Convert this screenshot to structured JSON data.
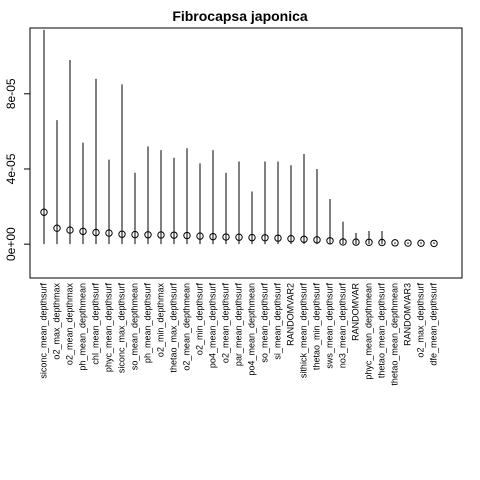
{
  "chart_data": {
    "type": "scatter",
    "subtype": "dot-with-range-lines",
    "title": "Fibrocapsa japonica",
    "xlabel": "",
    "ylabel": "",
    "ylim": [
      -1.8e-05,
      0.000115
    ],
    "y_ticks": [
      0,
      4e-05,
      8e-05
    ],
    "y_tick_labels": [
      "0e+00",
      "4e-05",
      "8e-05"
    ],
    "categories": [
      "siconc_mean_depthsurf",
      "o2_max_depthmax",
      "o2_mean_depthmax",
      "ph_mean_depthmean",
      "chl_mean_depthsurf",
      "phyc_mean_depthsurf",
      "siconc_max_depthsurf",
      "so_mean_depthmean",
      "ph_mean_depthsurf",
      "o2_min_depthmax",
      "thetao_max_depthsurf",
      "o2_mean_depthmean",
      "o2_min_depthsurf",
      "po4_mean_depthsurf",
      "o2_mean_depthsurf",
      "par_mean_depthsurf",
      "po4_mean_depthmean",
      "so_mean_depthsurf",
      "si_mean_depthsurf",
      "RANDOMVAR2",
      "sithick_mean_depthsurf",
      "thetao_min_depthsurf",
      "sws_mean_depthsurf",
      "no3_mean_depthsurf",
      "RANDOMVAR",
      "phyc_mean_depthmean",
      "thetao_mean_depthsurf",
      "thetao_mean_depthmean",
      "RANDOMVAR3",
      "o2_max_depthsurf",
      "dfe_mean_depthsurf"
    ],
    "values": [
      1.7e-05,
      8.5e-06,
      7.5e-06,
      6.8e-06,
      6.2e-06,
      5.9e-06,
      5.3e-06,
      5.1e-06,
      5e-06,
      4.9e-06,
      4.8e-06,
      4.6e-06,
      4.3e-06,
      4e-06,
      3.8e-06,
      3.7e-06,
      3.5e-06,
      3.4e-06,
      3.2e-06,
      2.9e-06,
      2.6e-06,
      2.3e-06,
      1.8e-06,
      1.2e-06,
      1.1e-06,
      1e-06,
      9e-07,
      7e-07,
      6e-07,
      5e-07,
      4e-07
    ],
    "range_max": [
      0.000114,
      6.6e-05,
      9.8e-05,
      5.4e-05,
      8.8e-05,
      4.5e-05,
      8.5e-05,
      3.8e-05,
      5.2e-05,
      5e-05,
      4.6e-05,
      5.1e-05,
      4.3e-05,
      5e-05,
      3.8e-05,
      4.4e-05,
      2.8e-05,
      4.4e-05,
      4.4e-05,
      4.2e-05,
      4.8e-05,
      4e-05,
      2.4e-05,
      1.2e-05,
      6e-06,
      7e-06,
      7e-06,
      1e-06,
      1e-06,
      1e-06,
      1e-06
    ],
    "range_min": 0,
    "grid": false,
    "legend": "none"
  }
}
